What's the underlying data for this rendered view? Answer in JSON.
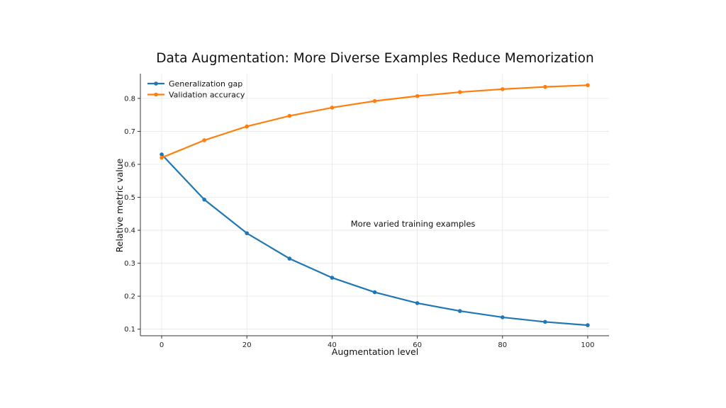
{
  "chart_data": {
    "type": "line",
    "title": "Data Augmentation: More Diverse Examples Reduce Memorization",
    "xlabel": "Augmentation level",
    "ylabel": "Relative metric value",
    "xlim": [
      -5,
      105
    ],
    "ylim": [
      0.08,
      0.875
    ],
    "xticks": [
      0,
      20,
      40,
      60,
      80,
      100
    ],
    "yticks": [
      0.1,
      0.2,
      0.3,
      0.4,
      0.5,
      0.6,
      0.7,
      0.8
    ],
    "grid": true,
    "legend_position": "top-left",
    "x": [
      0,
      10,
      20,
      30,
      40,
      50,
      60,
      70,
      80,
      90,
      100
    ],
    "series": [
      {
        "name": "Generalization gap",
        "color": "#1f77b4",
        "values": [
          0.63,
          0.493,
          0.391,
          0.314,
          0.256,
          0.212,
          0.179,
          0.155,
          0.136,
          0.122,
          0.112
        ]
      },
      {
        "name": "Validation accuracy",
        "color": "#ff7f0e",
        "values": [
          0.62,
          0.673,
          0.715,
          0.747,
          0.772,
          0.792,
          0.807,
          0.819,
          0.828,
          0.835,
          0.84
        ]
      }
    ],
    "annotations": [
      {
        "text": "More varied training examples",
        "x": 59,
        "y": 0.42
      }
    ]
  }
}
